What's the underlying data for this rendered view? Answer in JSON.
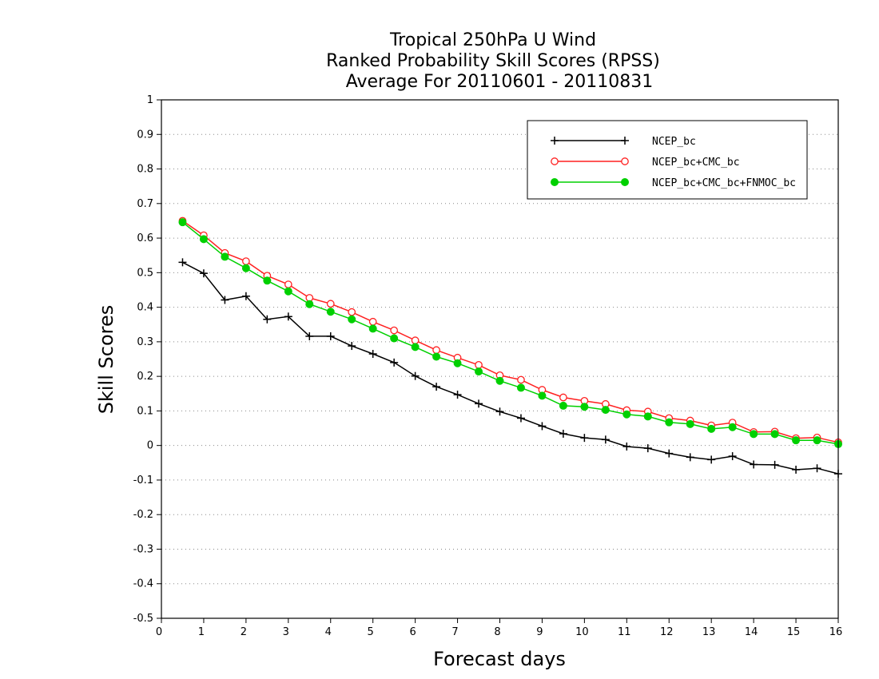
{
  "chart_data": {
    "type": "line",
    "title_lines": [
      "Tropical 250hPa U Wind",
      "Ranked Probability Skill Scores (RPSS)",
      "Average For 20110601 - 20110831"
    ],
    "xlabel": "Forecast days",
    "ylabel": "Skill Scores",
    "xlim": [
      0,
      16
    ],
    "ylim": [
      -0.5,
      1
    ],
    "xticks": [
      0,
      1,
      2,
      3,
      4,
      5,
      6,
      7,
      8,
      9,
      10,
      11,
      12,
      13,
      14,
      15,
      16
    ],
    "yticks": [
      -0.5,
      -0.4,
      -0.3,
      -0.2,
      -0.1,
      0,
      0.1,
      0.2,
      0.3,
      0.4,
      0.5,
      0.6,
      0.7,
      0.8,
      0.9,
      1
    ],
    "ytick_labels": [
      "-0.5",
      "-0.4",
      "-0.3",
      "-0.2",
      "-0.1",
      "0",
      "0.1",
      "0.2",
      "0.3",
      "0.4",
      "0.5",
      "0.6",
      "0.7",
      "0.8",
      "0.9",
      "1"
    ],
    "grid": "horizontal-dotted",
    "legend_position": "top-right",
    "x": [
      0.5,
      1,
      1.5,
      2,
      2.5,
      3,
      3.5,
      4,
      4.5,
      5,
      5.5,
      6,
      6.5,
      7,
      7.5,
      8,
      8.5,
      9,
      9.5,
      10,
      10.5,
      11,
      11.5,
      12,
      12.5,
      13,
      13.5,
      14,
      14.5,
      15,
      15.5,
      16
    ],
    "series": [
      {
        "name": "NCEP_bc",
        "color": "#000000",
        "marker": "plus",
        "values": [
          0.53,
          0.498,
          0.421,
          0.432,
          0.365,
          0.373,
          0.316,
          0.316,
          0.288,
          0.265,
          0.24,
          0.201,
          0.17,
          0.147,
          0.121,
          0.098,
          0.079,
          0.056,
          0.034,
          0.022,
          0.017,
          -0.003,
          -0.008,
          -0.023,
          -0.034,
          -0.041,
          -0.031,
          -0.055,
          -0.056,
          -0.07,
          -0.066,
          -0.082
        ]
      },
      {
        "name": "NCEP_bc+CMC_bc",
        "color": "#ff2020",
        "marker": "open-circle",
        "values": [
          0.65,
          0.608,
          0.557,
          0.533,
          0.491,
          0.466,
          0.427,
          0.41,
          0.386,
          0.358,
          0.333,
          0.304,
          0.276,
          0.254,
          0.233,
          0.203,
          0.19,
          0.161,
          0.139,
          0.129,
          0.12,
          0.102,
          0.098,
          0.079,
          0.072,
          0.058,
          0.066,
          0.039,
          0.04,
          0.021,
          0.023,
          0.009
        ]
      },
      {
        "name": "NCEP_bc+CMC_bc+FNMOC_bc",
        "color": "#00d000",
        "marker": "filled-circle",
        "values": [
          0.646,
          0.597,
          0.546,
          0.513,
          0.477,
          0.446,
          0.409,
          0.387,
          0.365,
          0.338,
          0.31,
          0.285,
          0.257,
          0.238,
          0.214,
          0.187,
          0.167,
          0.144,
          0.115,
          0.112,
          0.103,
          0.09,
          0.084,
          0.067,
          0.062,
          0.048,
          0.053,
          0.033,
          0.033,
          0.015,
          0.015,
          0.004
        ]
      }
    ]
  }
}
